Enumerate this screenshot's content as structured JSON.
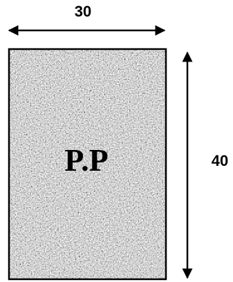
{
  "labels": {
    "width": "30",
    "height": "40",
    "center": "P.P"
  }
}
